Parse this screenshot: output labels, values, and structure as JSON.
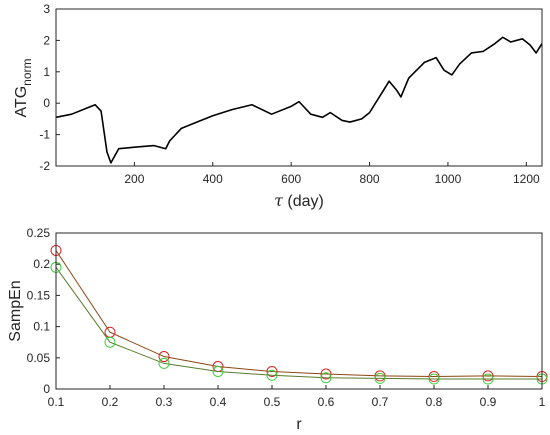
{
  "chart_data": [
    {
      "type": "line",
      "xlabel_symbol": "τ",
      "xlabel_text": " (day)",
      "ylabel_main": "ATG",
      "ylabel_sub": "norm",
      "xlim": [
        0,
        1240
      ],
      "ylim": [
        -2,
        3
      ],
      "xticks": [
        200,
        400,
        600,
        800,
        1000,
        1200
      ],
      "yticks": [
        -2,
        -1,
        0,
        1,
        2,
        3
      ],
      "grid": false,
      "series": [
        {
          "color": "#000000",
          "x": [
            0,
            40,
            80,
            100,
            115,
            130,
            140,
            160,
            200,
            250,
            280,
            290,
            320,
            360,
            400,
            450,
            500,
            550,
            600,
            620,
            650,
            680,
            700,
            730,
            750,
            780,
            800,
            830,
            850,
            870,
            880,
            900,
            940,
            970,
            990,
            1010,
            1030,
            1060,
            1090,
            1120,
            1140,
            1160,
            1190,
            1210,
            1225,
            1240
          ],
          "y": [
            -0.45,
            -0.35,
            -0.15,
            -0.05,
            -0.25,
            -1.55,
            -1.9,
            -1.45,
            -1.4,
            -1.35,
            -1.45,
            -1.2,
            -0.8,
            -0.6,
            -0.4,
            -0.2,
            -0.05,
            -0.35,
            -0.1,
            0.05,
            -0.35,
            -0.45,
            -0.3,
            -0.55,
            -0.6,
            -0.5,
            -0.3,
            0.3,
            0.7,
            0.4,
            0.2,
            0.8,
            1.3,
            1.45,
            1.05,
            0.9,
            1.25,
            1.6,
            1.65,
            1.9,
            2.1,
            1.95,
            2.05,
            1.85,
            1.6,
            1.9
          ]
        }
      ]
    },
    {
      "type": "line",
      "xlabel": "r",
      "ylabel": "SampEn",
      "xlim": [
        0.1,
        1
      ],
      "ylim": [
        0,
        0.25
      ],
      "xticks": [
        "0.1",
        "0.2",
        "0.3",
        "0.4",
        "0.5",
        "0.6",
        "0.7",
        "0.8",
        "0.9",
        "1"
      ],
      "yticks": [
        "0",
        "0.05",
        "0.1",
        "0.15",
        "0.2",
        "0.25"
      ],
      "grid": false,
      "marker": "circle",
      "x": [
        0.1,
        0.2,
        0.3,
        0.4,
        0.5,
        0.6,
        0.7,
        0.8,
        0.9,
        1.0
      ],
      "series": [
        {
          "line_color": "#8B4513",
          "marker_color": "#D62728",
          "values": [
            0.222,
            0.091,
            0.052,
            0.036,
            0.028,
            0.024,
            0.021,
            0.02,
            0.021,
            0.02
          ]
        },
        {
          "line_color": "#5A7A2A",
          "marker_color": "#3CCF3C",
          "values": [
            0.195,
            0.075,
            0.041,
            0.028,
            0.022,
            0.018,
            0.017,
            0.016,
            0.016,
            0.016
          ]
        }
      ]
    }
  ]
}
